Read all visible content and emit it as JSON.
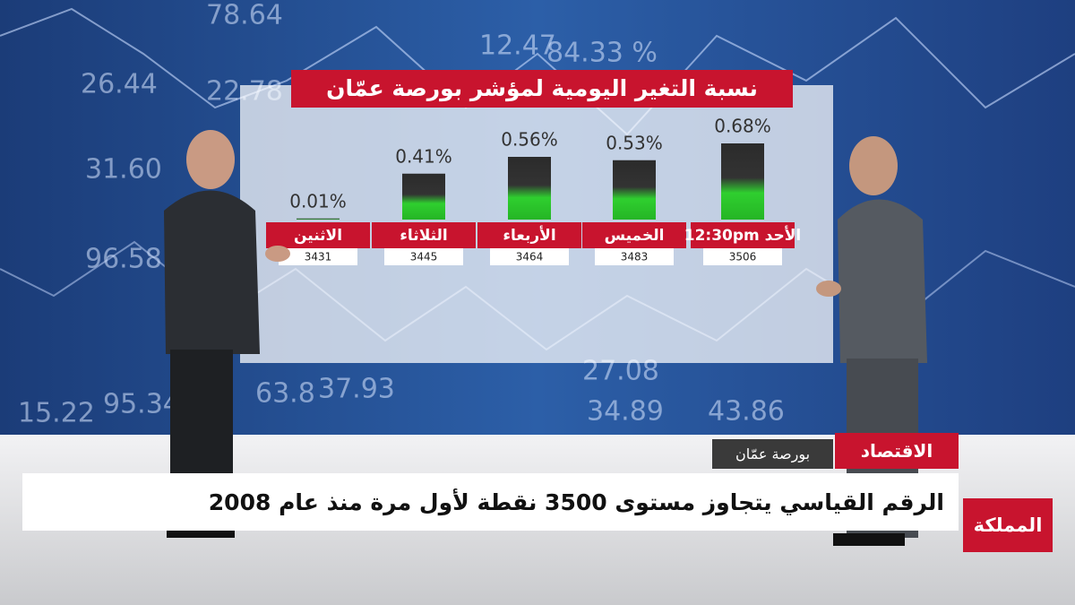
{
  "chart_data": {
    "type": "bar",
    "title": "نسبة التغير اليومية لمؤشر بورصة عمّان",
    "categories": [
      "الاثنين",
      "الثلاثاء",
      "الأربعاء",
      "الخميس",
      "الأحد 12:30pm"
    ],
    "values": [
      0.01,
      0.41,
      0.56,
      0.53,
      0.68
    ],
    "value_labels": [
      "0.01%",
      "0.41%",
      "0.56%",
      "0.53%",
      "0.68%"
    ],
    "index_levels": [
      3431,
      3445,
      3464,
      3483,
      3506
    ],
    "color": "#2ecc2e"
  },
  "backdrop": {
    "labels": [
      "26.44",
      "22.78",
      "78.64",
      "31.60",
      "96.58",
      "15.22",
      "95.34",
      "12.47",
      "84.33 %",
      "63.8",
      "37.93",
      "27.08",
      "34.89",
      "43.86"
    ]
  },
  "ticker": {
    "section": "الاقتصاد",
    "topic": "بورصة عمّان",
    "headline": "الرقم القياسي يتجاوز مستوى 3500 نقطة لأول مرة منذ عام 2008",
    "logo": "المملكة"
  }
}
